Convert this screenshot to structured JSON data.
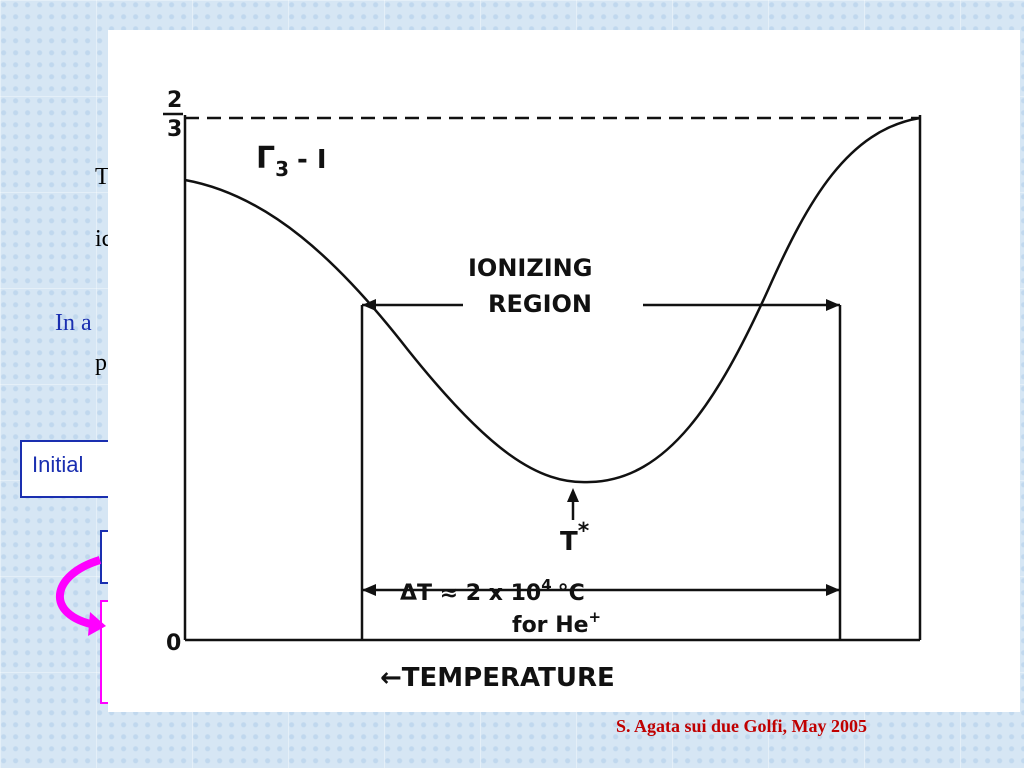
{
  "slide": {
    "fragments": [
      "T",
      "ic",
      "In a",
      "p",
      "Initial"
    ],
    "footer": "S. Agata sui due Golfi, May 2005"
  },
  "figure": {
    "top_numerator": "2",
    "top_denominator": "3",
    "origin": "0",
    "curve_label": "Γ",
    "curve_label_sub": "3",
    "curve_label_tail": "- I",
    "region_line1": "IONIZING",
    "region_line2": "REGION",
    "tstar": "T",
    "tstar_sup": "*",
    "delta_main": "ΔT ≈ 2 x 10",
    "delta_sup": "4",
    "delta_unit": "°C",
    "delta_for": "for He",
    "delta_for_sup": "+",
    "x_axis": "←TEMPERATURE"
  }
}
